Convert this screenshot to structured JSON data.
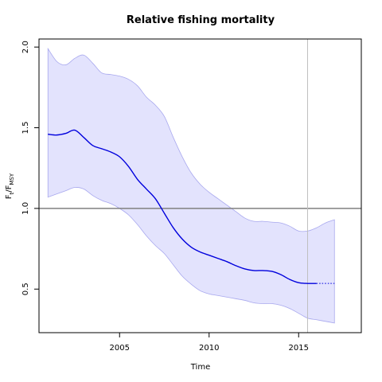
{
  "chart_data": {
    "type": "line",
    "title": "Relative fishing mortality",
    "xlabel": "Time",
    "ylabel": {
      "main": "F",
      "sub_t": "t",
      "sep": "/",
      "main2": "F",
      "sub_msy": "MSY"
    },
    "xlim": [
      2000.5,
      2018.5
    ],
    "ylim": [
      0.23,
      2.05
    ],
    "x_ticks": [
      2005,
      2010,
      2015
    ],
    "y_ticks": [
      0.5,
      1.0,
      1.5,
      2.0
    ],
    "x_tick_labels": [
      "2005",
      "2010",
      "2015"
    ],
    "y_tick_labels": [
      "0.5",
      "1.0",
      "1.5",
      "2.0"
    ],
    "reference_line": {
      "y": 1.0,
      "color": "#808080"
    },
    "vertical_marker": {
      "x": 2015.5,
      "color": "#c0c0c0"
    },
    "colors": {
      "line": "#0000dd",
      "band_fill": "#e3e3fd",
      "band_edge": "#a8a8ee"
    },
    "series": [
      {
        "role": "estimate",
        "style": "solid",
        "x": [
          2001.0,
          2001.5,
          2002.0,
          2002.5,
          2003.0,
          2003.5,
          2004.0,
          2004.5,
          2005.0,
          2005.5,
          2006.0,
          2006.5,
          2007.0,
          2007.5,
          2008.0,
          2008.5,
          2009.0,
          2009.5,
          2010.0,
          2010.5,
          2011.0,
          2011.5,
          2012.0,
          2012.5,
          2013.0,
          2013.5,
          2014.0,
          2014.5,
          2015.0,
          2015.5,
          2016.0
        ],
        "values": [
          1.46,
          1.455,
          1.465,
          1.485,
          1.44,
          1.39,
          1.37,
          1.35,
          1.32,
          1.26,
          1.18,
          1.12,
          1.06,
          0.97,
          0.88,
          0.81,
          0.76,
          0.73,
          0.71,
          0.69,
          0.67,
          0.645,
          0.625,
          0.615,
          0.615,
          0.61,
          0.59,
          0.56,
          0.54,
          0.535,
          0.535
        ]
      },
      {
        "role": "projection",
        "style": "dotted",
        "x": [
          2016.0,
          2017.0
        ],
        "values": [
          0.535,
          0.535
        ]
      }
    ],
    "confidence_band": {
      "x": [
        2001.0,
        2001.5,
        2002.0,
        2002.5,
        2003.0,
        2003.5,
        2004.0,
        2004.5,
        2005.0,
        2005.5,
        2006.0,
        2006.5,
        2007.0,
        2007.5,
        2008.0,
        2008.5,
        2009.0,
        2009.5,
        2010.0,
        2010.5,
        2011.0,
        2011.5,
        2012.0,
        2012.5,
        2013.0,
        2013.5,
        2014.0,
        2014.5,
        2015.0,
        2015.5,
        2016.0,
        2016.5,
        2017.0
      ],
      "upper": [
        1.99,
        1.91,
        1.89,
        1.93,
        1.95,
        1.9,
        1.84,
        1.83,
        1.82,
        1.8,
        1.76,
        1.69,
        1.64,
        1.57,
        1.44,
        1.32,
        1.22,
        1.15,
        1.1,
        1.06,
        1.02,
        0.98,
        0.94,
        0.92,
        0.92,
        0.915,
        0.91,
        0.89,
        0.86,
        0.86,
        0.88,
        0.91,
        0.93
      ],
      "lower": [
        1.07,
        1.09,
        1.11,
        1.13,
        1.12,
        1.08,
        1.05,
        1.03,
        1.0,
        0.96,
        0.9,
        0.83,
        0.77,
        0.72,
        0.65,
        0.58,
        0.53,
        0.49,
        0.47,
        0.46,
        0.45,
        0.44,
        0.43,
        0.415,
        0.41,
        0.41,
        0.4,
        0.38,
        0.35,
        0.32,
        0.31,
        0.3,
        0.29
      ]
    },
    "grid": false,
    "legend": "none"
  }
}
